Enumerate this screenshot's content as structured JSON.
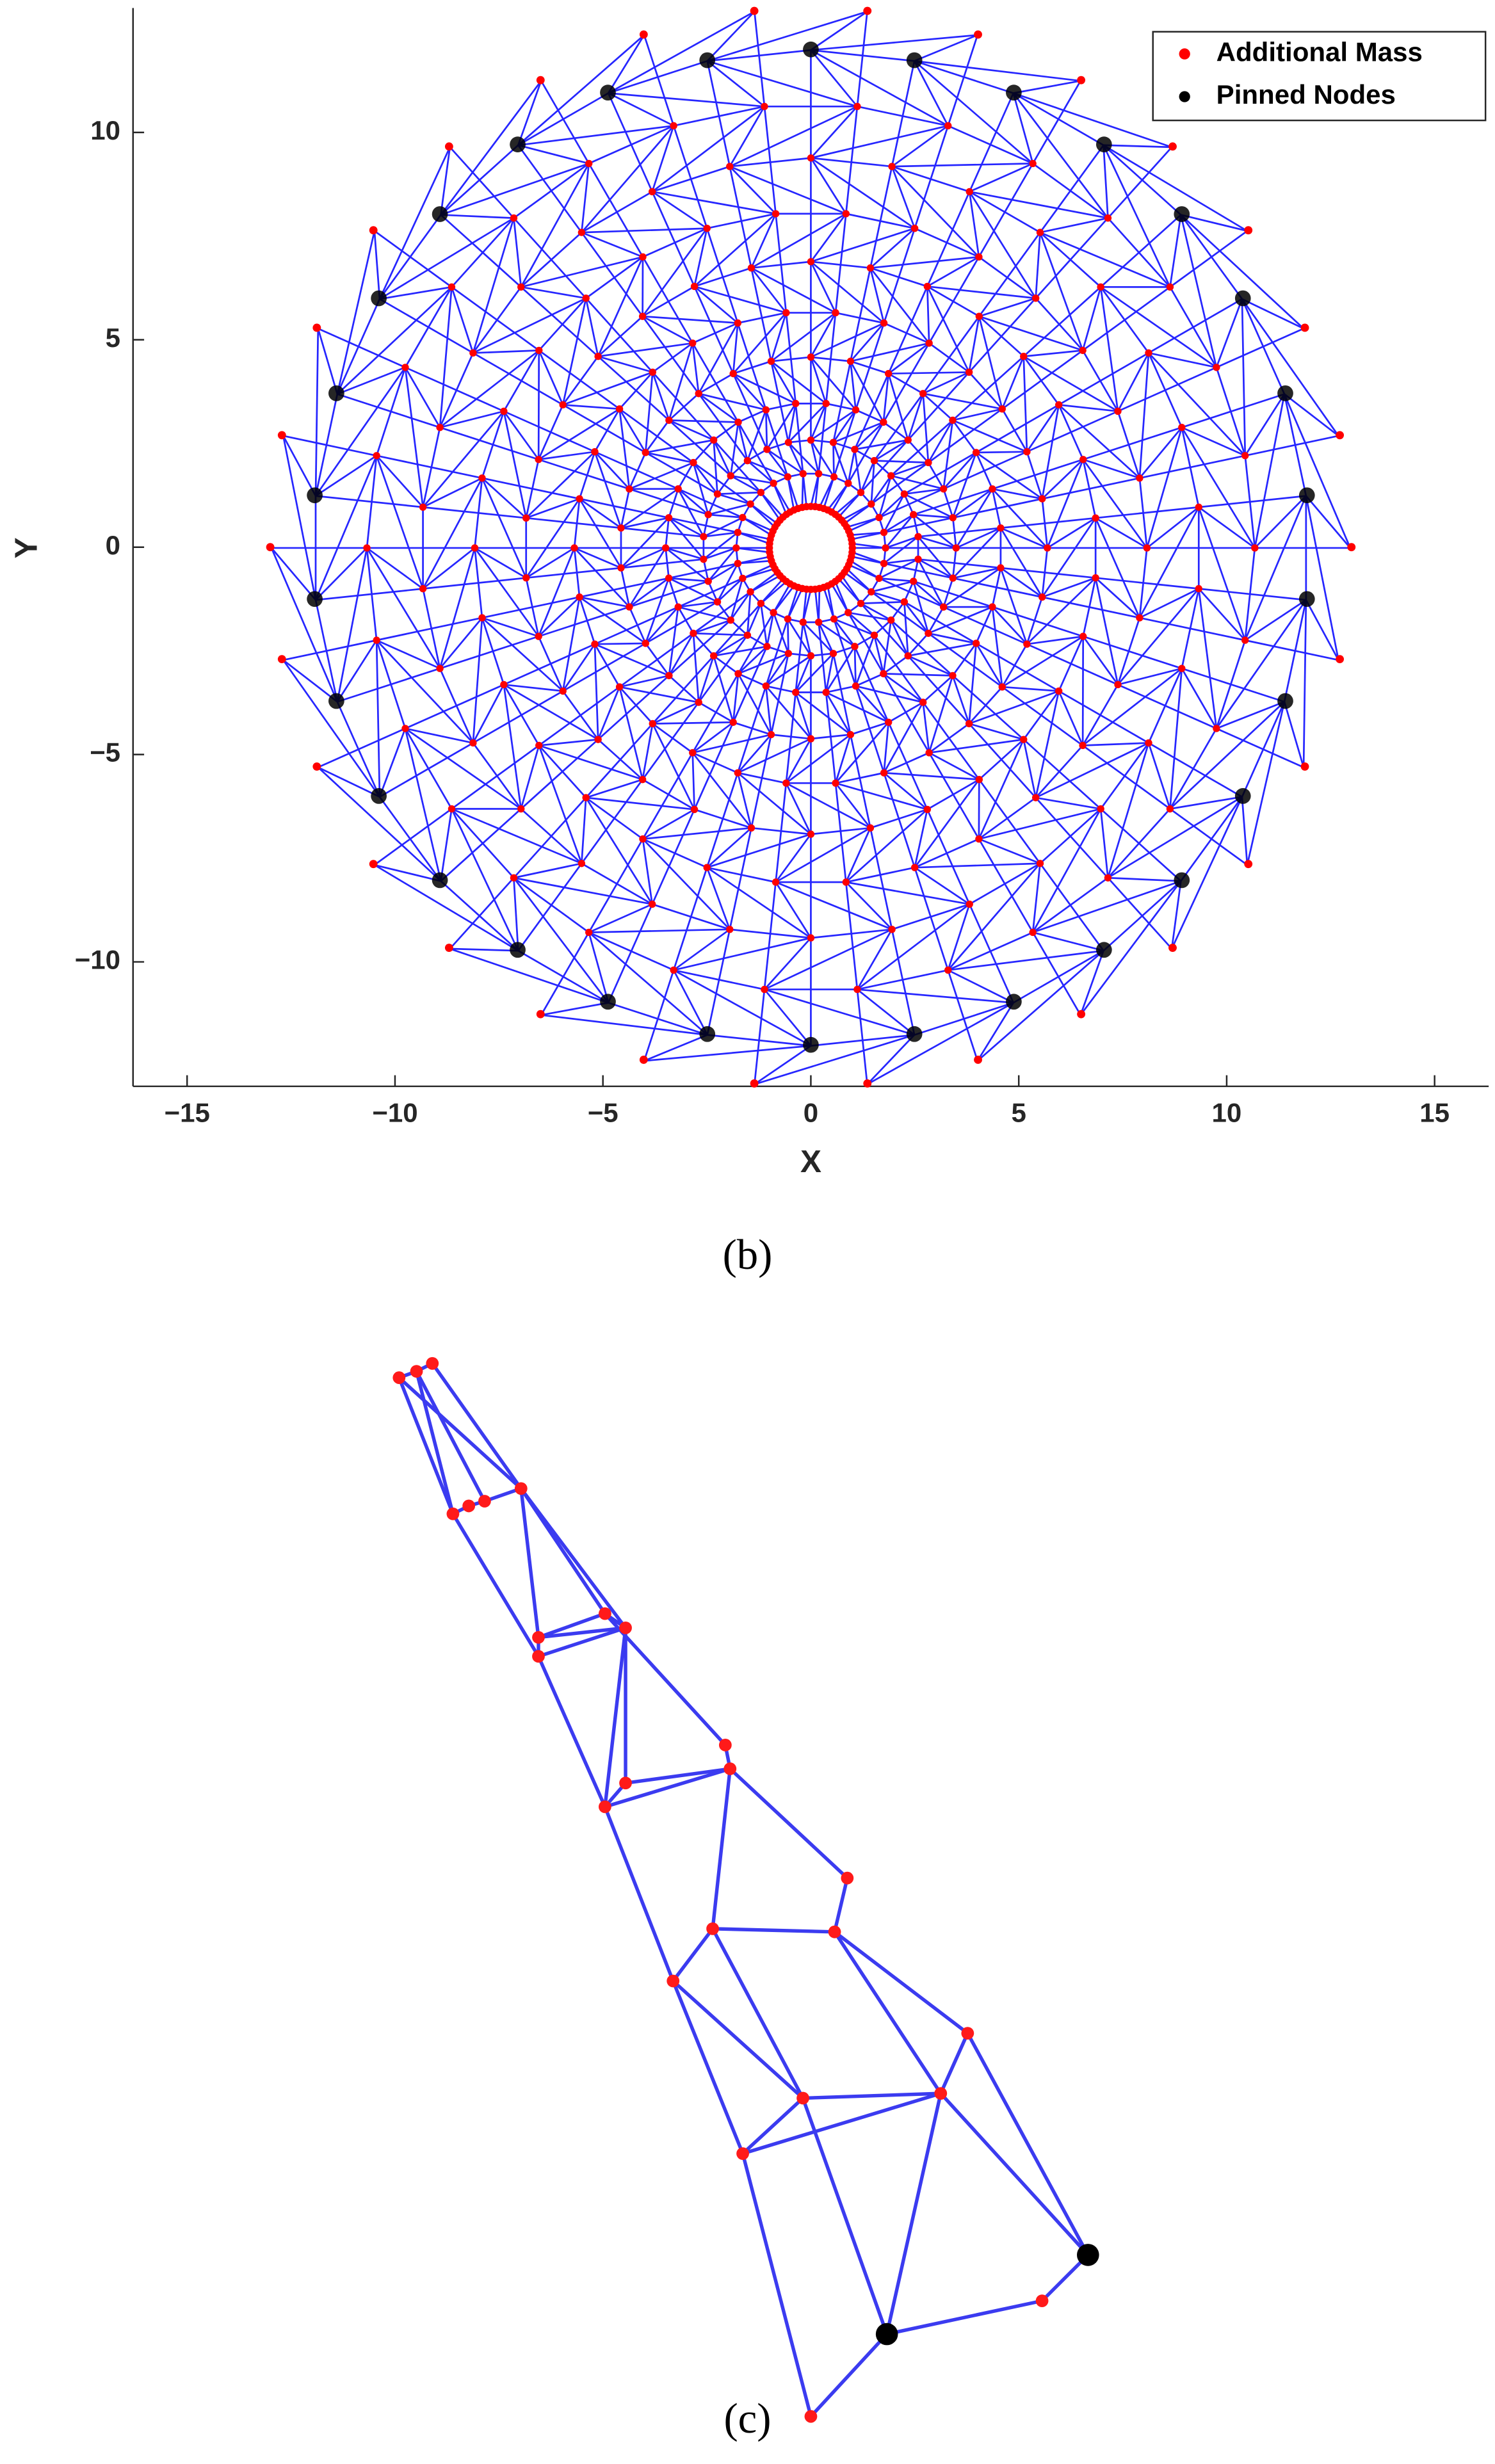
{
  "chart_data": {
    "type": "scatter",
    "xlabel": "X",
    "ylabel": "Y",
    "caption": "(b)",
    "xlim": [
      -16.3,
      16.3
    ],
    "ylim": [
      -13,
      13
    ],
    "xticks": [
      {
        "value": -15,
        "label": "−15"
      },
      {
        "value": -10,
        "label": "−10"
      },
      {
        "value": -5,
        "label": "−5"
      },
      0,
      5,
      10,
      15
    ],
    "yticks": [
      {
        "value": -10,
        "label": "−10"
      },
      {
        "value": -5,
        "label": "−5"
      },
      0,
      5,
      10
    ],
    "legend": "upper right",
    "series": [
      {
        "name": "Additional Mass",
        "color": "#ff0000",
        "x": [
          1.36,
          4.02,
          6.5,
          8.7,
          10.52,
          11.88,
          12.72,
          13,
          12.72,
          11.88,
          10.52,
          8.7,
          6.5,
          4.02,
          1.36,
          -1.36,
          -4.02,
          -6.5,
          -8.7,
          -10.52,
          -11.88,
          -12.72,
          -13,
          -12.72,
          -11.88,
          -10.52,
          -8.7,
          -6.5,
          -4.02,
          -1.36
        ],
        "y": [
          12.93,
          12.36,
          11.26,
          9.66,
          7.64,
          5.29,
          2.7,
          0,
          -2.7,
          -5.29,
          -7.64,
          -9.66,
          -11.26,
          -12.36,
          -12.93,
          -12.93,
          -12.36,
          -11.26,
          -9.66,
          -7.64,
          -5.29,
          -2.7,
          0,
          2.7,
          5.29,
          7.64,
          9.66,
          11.26,
          12.36,
          12.93
        ]
      },
      {
        "name": "Pinned Nodes",
        "color": "#000000",
        "x": [
          0,
          2.49,
          4.88,
          7.05,
          8.92,
          10.39,
          11.41,
          11.93,
          11.93,
          11.41,
          10.39,
          8.92,
          7.05,
          4.88,
          2.49,
          0,
          -2.49,
          -4.88,
          -7.05,
          -8.92,
          -10.39,
          -11.41,
          -11.93,
          -11.93,
          -11.41,
          -10.39,
          -8.92,
          -7.05,
          -4.88,
          -2.49
        ],
        "y": [
          12,
          11.74,
          10.96,
          9.71,
          8.03,
          6,
          3.71,
          1.25,
          -1.25,
          -3.71,
          -6,
          -8.03,
          -9.71,
          -10.96,
          -11.74,
          -12,
          -11.74,
          -10.96,
          -9.71,
          -8.03,
          -6,
          -3.71,
          -1.25,
          1.25,
          3.71,
          6,
          8.03,
          9.71,
          10.96,
          11.74
        ]
      }
    ]
  },
  "figure_c": {
    "caption": "(c)"
  }
}
